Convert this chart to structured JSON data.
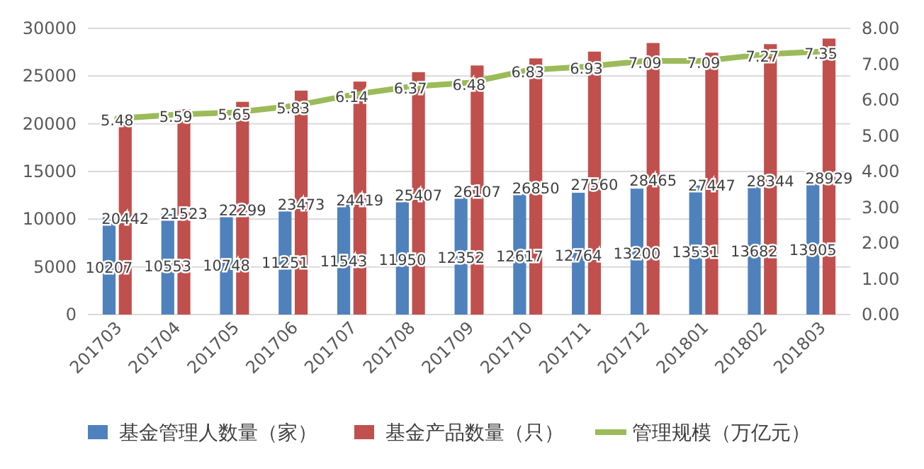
{
  "chart_data": {
    "type": "bar",
    "categories": [
      "201703",
      "201704",
      "201705",
      "201706",
      "201707",
      "201708",
      "201709",
      "201710",
      "201711",
      "201712",
      "201801",
      "201802",
      "201803"
    ],
    "series": [
      {
        "name": "基金管理人数量（家）",
        "color": "#4f81bd",
        "values": [
          10207,
          10553,
          10748,
          11251,
          11543,
          11950,
          12352,
          12617,
          12764,
          13200,
          13531,
          13682,
          13905
        ]
      },
      {
        "name": "基金产品数量（只）",
        "color": "#c0504d",
        "values": [
          20442,
          21523,
          22299,
          23473,
          24419,
          25407,
          26107,
          26850,
          27560,
          28465,
          27447,
          28344,
          28929
        ]
      },
      {
        "name": "管理规模（万亿元）",
        "color": "#9bbb59",
        "type": "line",
        "axis": "y2",
        "values": [
          5.48,
          5.59,
          5.65,
          5.83,
          6.14,
          6.37,
          6.48,
          6.83,
          6.93,
          7.09,
          7.09,
          7.27,
          7.35
        ]
      }
    ],
    "ylim": [
      0,
      30000
    ],
    "yticks": [
      0,
      5000,
      10000,
      15000,
      20000,
      25000,
      30000
    ],
    "y2lim": [
      0,
      8
    ],
    "y2ticks": [
      {
        "value": 0,
        "label": "0.00"
      },
      {
        "value": 1,
        "label": "1.00"
      },
      {
        "value": 2,
        "label": "2.00"
      },
      {
        "value": 3,
        "label": "3.00"
      },
      {
        "value": 4,
        "label": "4.00"
      },
      {
        "value": 5,
        "label": "5.00"
      },
      {
        "value": 6,
        "label": "6.00"
      },
      {
        "value": 7,
        "label": "7.00"
      },
      {
        "value": 8,
        "label": "8.00"
      }
    ],
    "data_labels": true,
    "grid": "y",
    "legend": "bottom"
  }
}
